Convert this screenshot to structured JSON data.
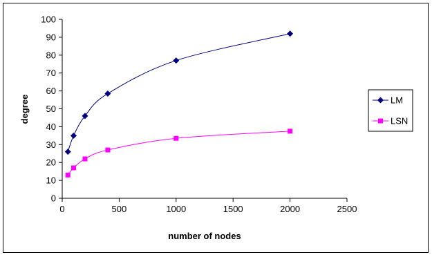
{
  "chart_data": {
    "type": "line",
    "title": "",
    "xlabel": "number of nodes",
    "ylabel": "degree",
    "xlim": [
      0,
      2500
    ],
    "ylim": [
      0,
      100
    ],
    "xticks": [
      0,
      500,
      1000,
      1500,
      2000,
      2500
    ],
    "yticks": [
      0,
      10,
      20,
      30,
      40,
      50,
      60,
      70,
      80,
      90,
      100
    ],
    "grid": false,
    "legend_position": "right",
    "series": [
      {
        "name": "LM",
        "color": "#00007f",
        "marker": "diamond",
        "x": [
          50,
          100,
          200,
          400,
          1000,
          2000
        ],
        "y": [
          26,
          35,
          46,
          58.5,
          77,
          92
        ]
      },
      {
        "name": "LSN",
        "color": "#ff00ff",
        "marker": "square",
        "x": [
          50,
          100,
          200,
          400,
          1000,
          2000
        ],
        "y": [
          13,
          17,
          22,
          27,
          33.5,
          37.5
        ]
      }
    ]
  }
}
